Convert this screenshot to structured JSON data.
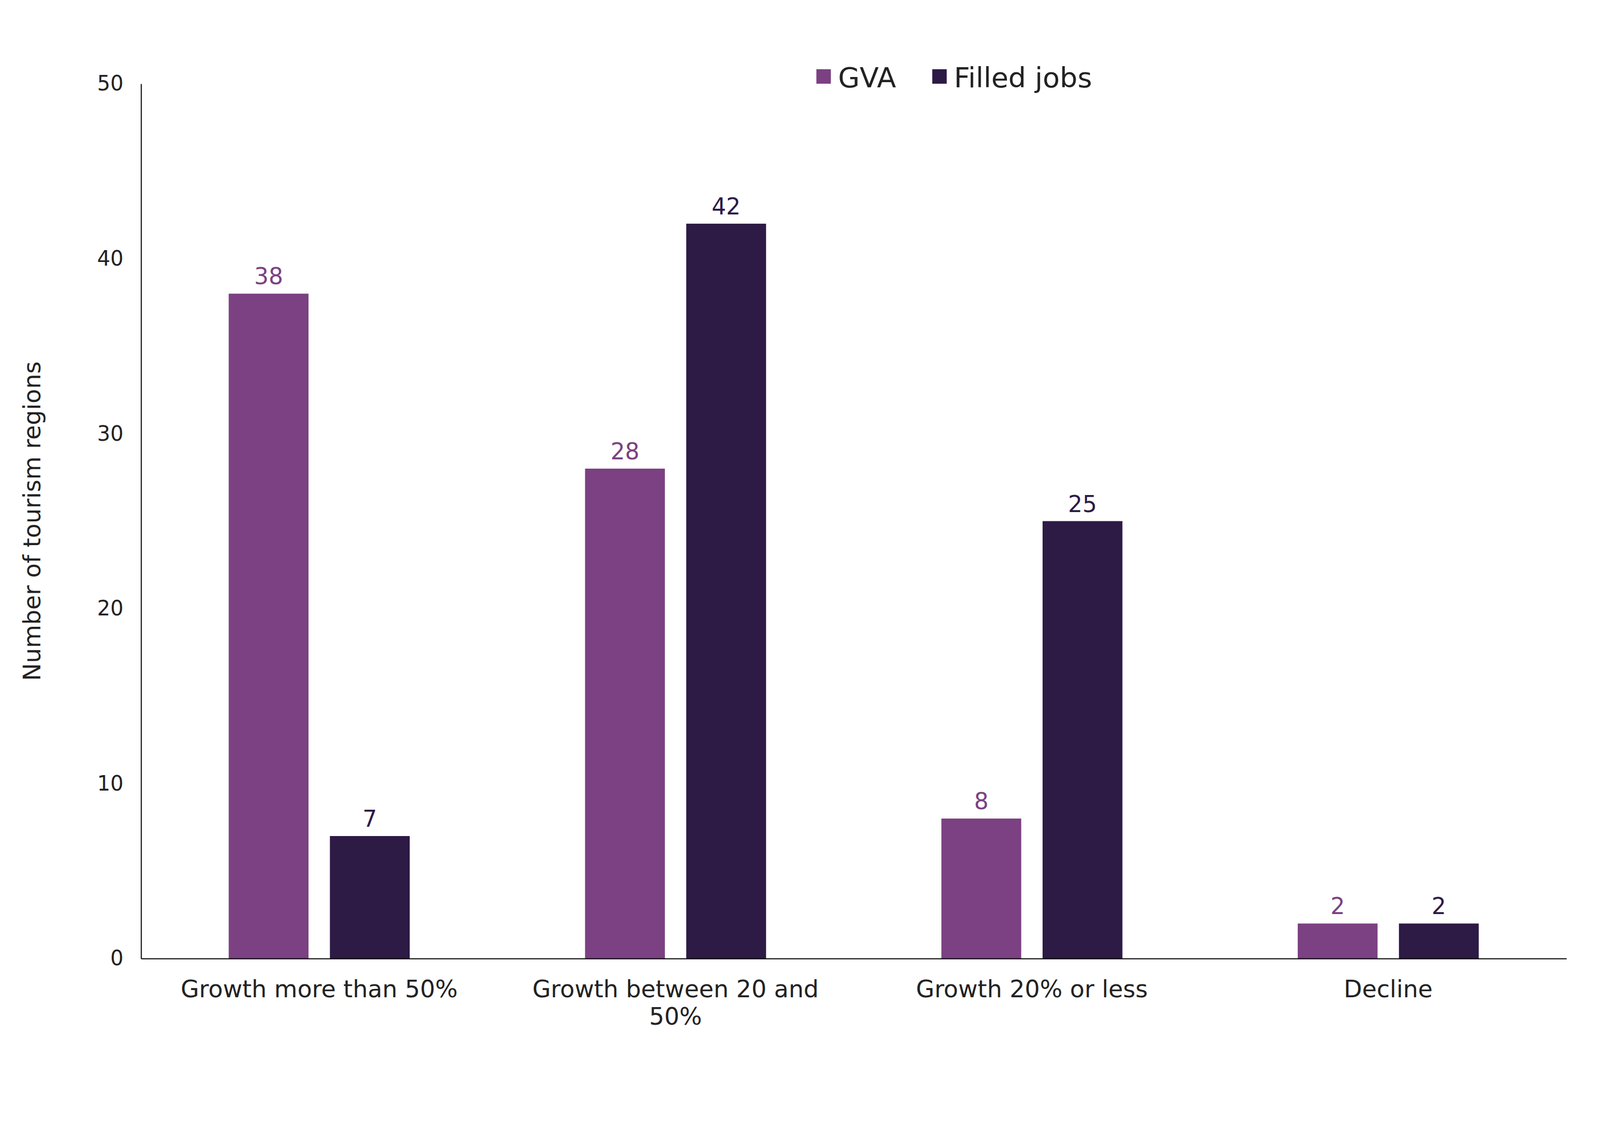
{
  "chart_data": {
    "type": "bar",
    "categories": [
      "Growth more than 50%",
      "Growth between 20 and 50%",
      "Growth 20% or less",
      "Decline"
    ],
    "series": [
      {
        "name": "GVA",
        "color": "#7b4182",
        "values": [
          38,
          28,
          8,
          2
        ]
      },
      {
        "name": "Filled jobs",
        "color": "#2d1a45",
        "values": [
          7,
          42,
          25,
          2
        ]
      }
    ],
    "y_label": "Number of tourism regions",
    "ylim": [
      0,
      50
    ],
    "yticks": [
      0,
      10,
      20,
      30,
      40,
      50
    ],
    "grid": false,
    "legend": "top",
    "data_labels": true
  }
}
